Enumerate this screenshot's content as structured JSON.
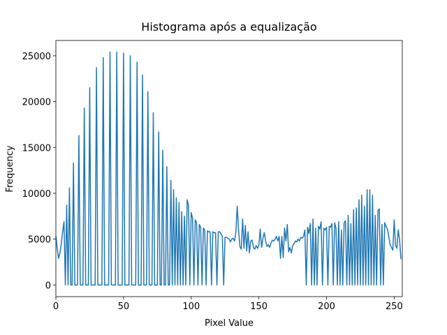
{
  "chart_data": {
    "type": "line",
    "title": "Histograma após a equalização",
    "x_label": "Pixel Value",
    "y_label": "Frequency",
    "xlim": [
      0,
      256
    ],
    "ylim": [
      -1270,
      26670
    ],
    "xticks": [
      0,
      50,
      100,
      150,
      200,
      250
    ],
    "yticks": [
      0,
      5000,
      10000,
      15000,
      20000,
      25000
    ],
    "grid": false,
    "x": [
      0,
      1,
      2,
      3,
      4,
      5,
      6,
      7,
      8,
      9,
      10,
      11,
      12,
      13,
      14,
      15,
      16,
      17,
      18,
      19,
      20,
      21,
      22,
      23,
      24,
      25,
      26,
      27,
      28,
      29,
      30,
      31,
      32,
      33,
      34,
      35,
      36,
      37,
      38,
      39,
      40,
      41,
      42,
      43,
      44,
      45,
      46,
      47,
      48,
      49,
      50,
      51,
      52,
      53,
      54,
      55,
      56,
      57,
      58,
      59,
      60,
      61,
      62,
      63,
      64,
      65,
      66,
      67,
      68,
      69,
      70,
      71,
      72,
      73,
      74,
      75,
      76,
      77,
      78,
      79,
      80,
      81,
      82,
      83,
      84,
      85,
      86,
      87,
      88,
      89,
      90,
      91,
      92,
      93,
      94,
      95,
      96,
      97,
      98,
      99,
      100,
      101,
      102,
      103,
      104,
      105,
      106,
      107,
      108,
      109,
      110,
      111,
      112,
      113,
      114,
      115,
      116,
      117,
      118,
      119,
      120,
      121,
      122,
      123,
      124,
      125,
      126,
      127,
      128,
      129,
      130,
      131,
      132,
      133,
      134,
      135,
      136,
      137,
      138,
      139,
      140,
      141,
      142,
      143,
      144,
      145,
      146,
      147,
      148,
      149,
      150,
      151,
      152,
      153,
      154,
      155,
      156,
      157,
      158,
      159,
      160,
      161,
      162,
      163,
      164,
      165,
      166,
      167,
      168,
      169,
      170,
      171,
      172,
      173,
      174,
      175,
      176,
      177,
      178,
      179,
      180,
      181,
      182,
      183,
      184,
      185,
      186,
      187,
      188,
      189,
      190,
      191,
      192,
      193,
      194,
      195,
      196,
      197,
      198,
      199,
      200,
      201,
      202,
      203,
      204,
      205,
      206,
      207,
      208,
      209,
      210,
      211,
      212,
      213,
      214,
      215,
      216,
      217,
      218,
      219,
      220,
      221,
      222,
      223,
      224,
      225,
      226,
      227,
      228,
      229,
      230,
      231,
      232,
      233,
      234,
      235,
      236,
      237,
      238,
      239,
      240,
      241,
      242,
      243,
      244,
      245,
      246,
      247,
      248,
      249,
      250,
      251,
      252,
      253,
      254,
      255
    ],
    "series": [
      {
        "color": "#1f77b4",
        "values": [
          5300,
          4000,
          2900,
          3500,
          4500,
          5800,
          6900,
          0,
          8700,
          0,
          10600,
          0,
          0,
          13300,
          0,
          0,
          0,
          16300,
          0,
          0,
          0,
          19300,
          0,
          0,
          0,
          21500,
          0,
          0,
          0,
          0,
          23700,
          0,
          0,
          0,
          0,
          24800,
          0,
          0,
          0,
          0,
          25400,
          0,
          0,
          0,
          0,
          25400,
          0,
          0,
          0,
          0,
          25300,
          0,
          0,
          0,
          0,
          25000,
          0,
          0,
          0,
          0,
          24300,
          0,
          0,
          0,
          22900,
          0,
          0,
          0,
          21100,
          0,
          0,
          0,
          18800,
          0,
          0,
          0,
          16700,
          0,
          0,
          14700,
          0,
          0,
          12900,
          0,
          0,
          11400,
          0,
          10400,
          0,
          9500,
          0,
          9000,
          0,
          8000,
          0,
          7500,
          0,
          9300,
          8700,
          0,
          7900,
          7300,
          0,
          7100,
          6800,
          0,
          6600,
          6300,
          0,
          6200,
          6000,
          0,
          5900,
          5800,
          5800,
          0,
          5800,
          5700,
          5700,
          0,
          5800,
          5800,
          5600,
          5300,
          0,
          5200,
          5200,
          5100,
          5000,
          4700,
          5000,
          5100,
          4800,
          5700,
          8600,
          6000,
          4200,
          3900,
          7200,
          4000,
          6500,
          3700,
          5800,
          3500,
          4800,
          4900,
          4100,
          3900,
          4300,
          4000,
          4300,
          6100,
          4100,
          5100,
          5700,
          4800,
          4200,
          4400,
          4100,
          4600,
          4900,
          4800,
          5000,
          5300,
          4800,
          5300,
          2900,
          5300,
          3000,
          6200,
          4800,
          6600,
          3600,
          4100,
          3500,
          4300,
          4500,
          4800,
          4700,
          5000,
          4800,
          5200,
          5100,
          5300,
          6000,
          0,
          6300,
          5600,
          6700,
          0,
          7200,
          0,
          6200,
          0,
          6400,
          6100,
          6900,
          0,
          6200,
          6000,
          6300,
          0,
          6400,
          6300,
          6700,
          0,
          6800,
          6200,
          0,
          6900,
          0,
          6000,
          0,
          6800,
          7000,
          0,
          7600,
          0,
          6700,
          0,
          8200,
          0,
          8400,
          0,
          9300,
          0,
          9800,
          0,
          8600,
          0,
          10400,
          0,
          10400,
          0,
          9800,
          0,
          7600,
          0,
          8100,
          8300,
          0,
          6600,
          0,
          6800,
          6400,
          6100,
          5300,
          4400,
          4100,
          3800,
          7100,
          4300,
          4000,
          6000,
          4900,
          2800
        ]
      }
    ]
  }
}
